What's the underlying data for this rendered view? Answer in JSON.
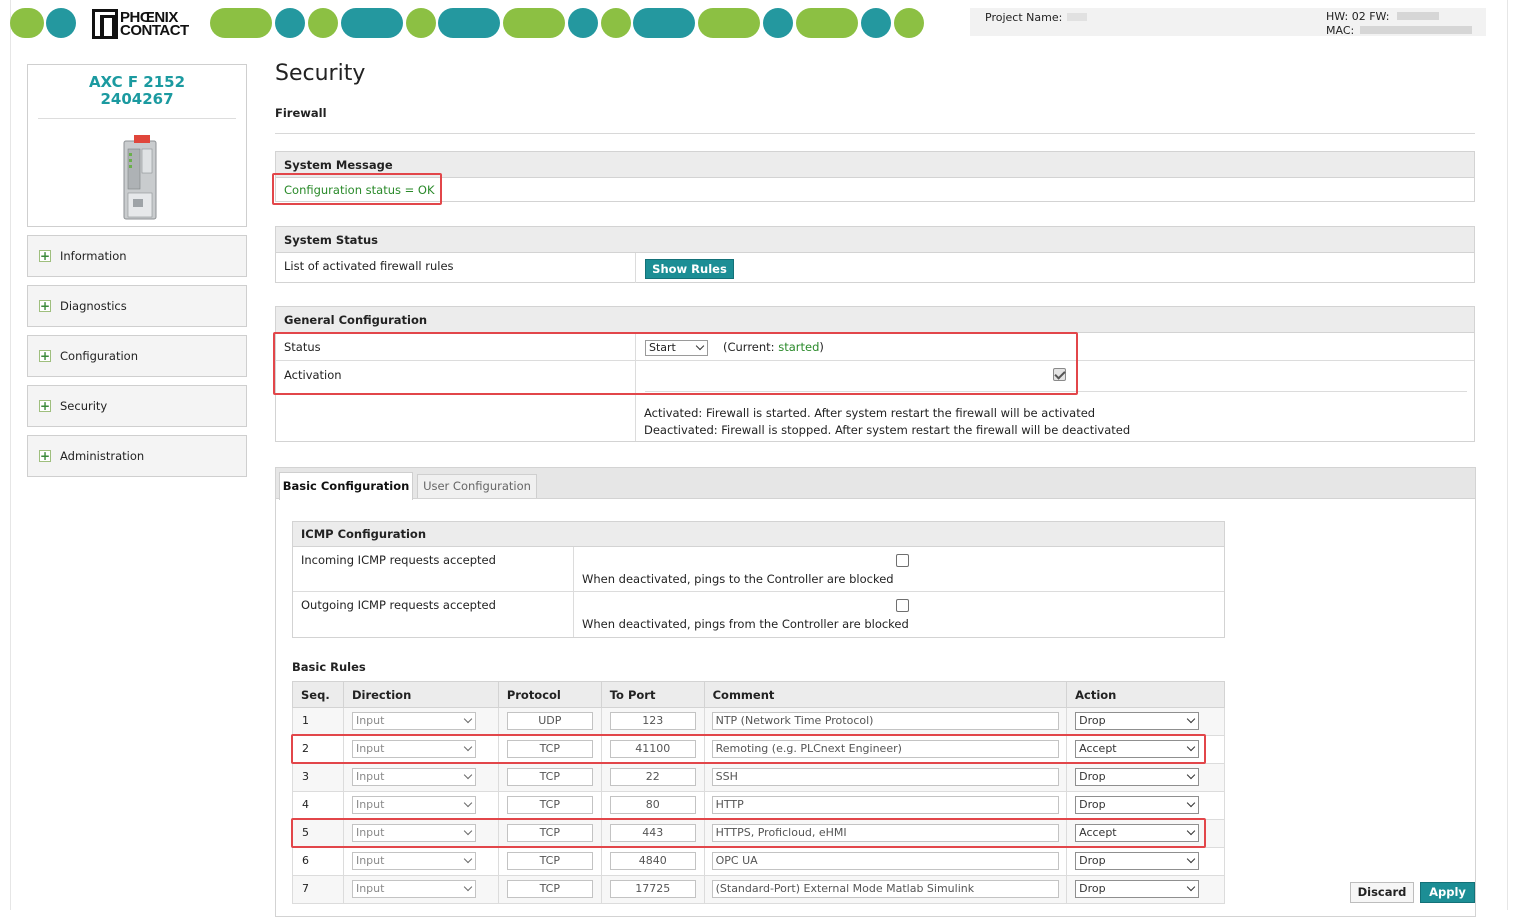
{
  "header": {
    "brand_line1": "PHŒNIX",
    "brand_line2": "CONTACT",
    "project_name_label": "Project Name:",
    "hw_label": "HW: 02 FW:",
    "mac_label": "MAC:",
    "colors": {
      "green": "#8cc043",
      "teal": "#24989f"
    }
  },
  "device": {
    "model": "AXC F 2152",
    "order_no": "2404267"
  },
  "sidebar": {
    "items": [
      {
        "label": "Information"
      },
      {
        "label": "Diagnostics"
      },
      {
        "label": "Configuration"
      },
      {
        "label": "Security"
      },
      {
        "label": "Administration"
      }
    ]
  },
  "page": {
    "title": "Security",
    "subtitle": "Firewall"
  },
  "system_message": {
    "heading": "System Message",
    "status": "Configuration status = OK"
  },
  "system_status": {
    "heading": "System Status",
    "label": "List of activated firewall rules",
    "button": "Show Rules"
  },
  "general_config": {
    "heading": "General Configuration",
    "status_label": "Status",
    "status_value": "Start",
    "current_prefix": "(Current:",
    "current_value": "started",
    "current_suffix": ")",
    "activation_label": "Activation",
    "activation_checked": true,
    "note_activated": "Activated: Firewall is started. After system restart the firewall will be activated",
    "note_deactivated": "Deactivated: Firewall is stopped. After system restart the firewall will be deactivated"
  },
  "tabs": [
    {
      "label": "Basic Configuration",
      "active": true
    },
    {
      "label": "User Configuration",
      "active": false
    }
  ],
  "icmp": {
    "heading": "ICMP Configuration",
    "incoming_label": "Incoming ICMP requests accepted",
    "incoming_hint": "When deactivated, pings to the Controller are blocked",
    "outgoing_label": "Outgoing ICMP requests accepted",
    "outgoing_hint": "When deactivated, pings from the Controller are blocked"
  },
  "basic_rules": {
    "title": "Basic Rules",
    "columns": [
      "Seq.",
      "Direction",
      "Protocol",
      "To Port",
      "Comment",
      "Action"
    ],
    "rows": [
      {
        "seq": "1",
        "direction": "Input",
        "protocol": "UDP",
        "port": "123",
        "comment": "NTP (Network Time Protocol)",
        "action": "Drop"
      },
      {
        "seq": "2",
        "direction": "Input",
        "protocol": "TCP",
        "port": "41100",
        "comment": "Remoting (e.g. PLCnext Engineer)",
        "action": "Accept"
      },
      {
        "seq": "3",
        "direction": "Input",
        "protocol": "TCP",
        "port": "22",
        "comment": "SSH",
        "action": "Drop"
      },
      {
        "seq": "4",
        "direction": "Input",
        "protocol": "TCP",
        "port": "80",
        "comment": "HTTP",
        "action": "Drop"
      },
      {
        "seq": "5",
        "direction": "Input",
        "protocol": "TCP",
        "port": "443",
        "comment": "HTTPS, Proficloud, eHMI",
        "action": "Accept"
      },
      {
        "seq": "6",
        "direction": "Input",
        "protocol": "TCP",
        "port": "4840",
        "comment": "OPC UA",
        "action": "Drop"
      },
      {
        "seq": "7",
        "direction": "Input",
        "protocol": "TCP",
        "port": "17725",
        "comment": "(Standard-Port) External Mode Matlab Simulink",
        "action": "Drop"
      }
    ]
  },
  "footer": {
    "discard": "Discard",
    "apply": "Apply"
  }
}
